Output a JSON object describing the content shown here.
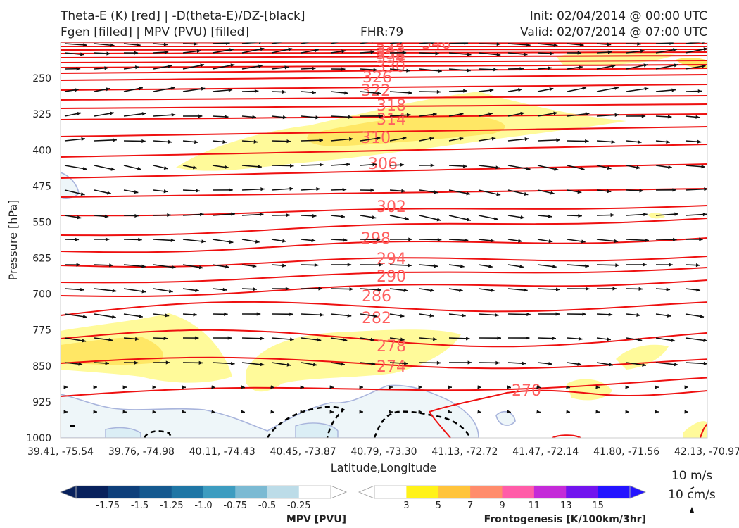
{
  "header": {
    "title_line1": "Theta-E (K) [red] | -D(theta-E)/DZ-[black]",
    "title_line2": "Fgen [filled] | MPV (PVU) [filled]",
    "fhr": "FHR:79",
    "init": "Init: 02/04/2014 @ 00:00 UTC",
    "valid": "Valid: 02/07/2014 @ 07:00 UTC"
  },
  "chart_data": {
    "type": "cross-section",
    "ylabel": "Pressure [hPa]",
    "xlabel": "Latitude,Longitude",
    "ylim": [
      1000,
      175
    ],
    "yticks": [
      "250",
      "325",
      "400",
      "475",
      "550",
      "625",
      "700",
      "775",
      "850",
      "925",
      "1000"
    ],
    "xticks": [
      "39.41, -75.54",
      "39.76, -74.98",
      "40.11, -74.43",
      "40.45, -73.87",
      "40.79, -73.30",
      "41.13, -72.72",
      "41.47, -72.14",
      "41.80, -71.56",
      "42.13, -70.97"
    ],
    "theta_e_labels": [
      "346",
      "342",
      "338",
      "334",
      "330",
      "326",
      "322",
      "318",
      "314",
      "310",
      "306",
      "302",
      "298",
      "294",
      "290",
      "286",
      "282",
      "278",
      "274",
      "270"
    ],
    "theta_e_color": "#ff0000",
    "wind_reference": {
      "speed": "10 m/s",
      "vertical": "10 cm/s"
    },
    "colorbars": [
      {
        "title": "MPV [PVU]",
        "labels": [
          "-1.75",
          "-1.5",
          "-1.25",
          "-1.0",
          "-0.75",
          "-0.5",
          "-0.25"
        ],
        "colors": [
          "#08215c",
          "#0e3f7a",
          "#15598f",
          "#1f76a5",
          "#3d9cc0",
          "#7bbad3",
          "#bcdce8",
          "#ffffff"
        ]
      },
      {
        "title": "Frontogenesis [K/100km/3hr]",
        "labels": [
          "3",
          "5",
          "7",
          "9",
          "11",
          "13",
          "15"
        ],
        "colors": [
          "#ffffff",
          "#fff21a",
          "#ffc43c",
          "#ff8c6c",
          "#ff5ca8",
          "#c42ad8",
          "#7214ee",
          "#2414ff"
        ]
      }
    ]
  }
}
